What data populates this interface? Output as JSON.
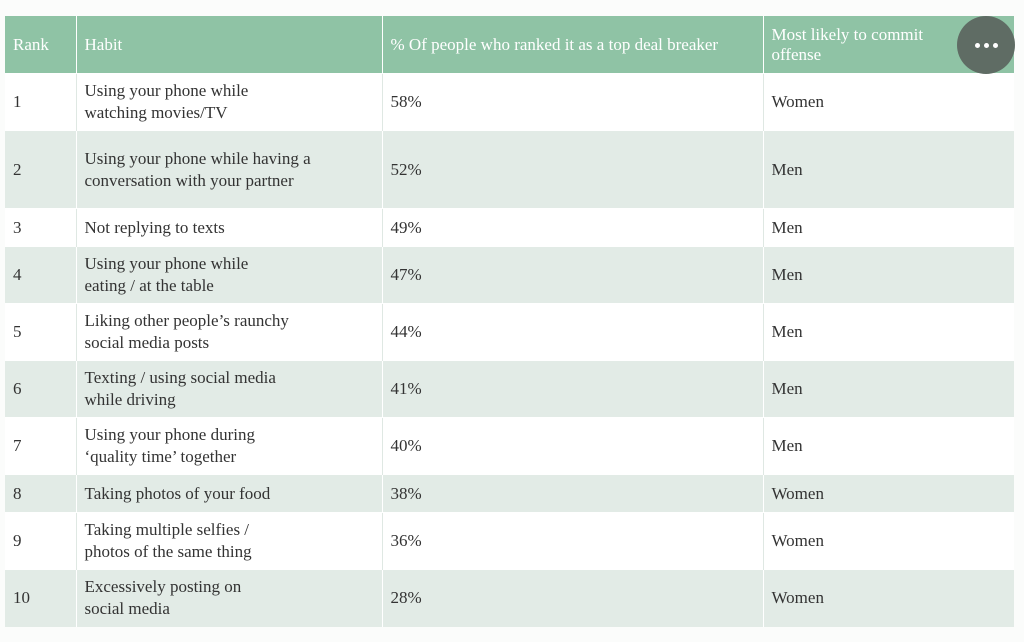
{
  "header": {
    "rank": "Rank",
    "habit": "Habit",
    "percent": "% Of people who ranked it as a top deal breaker",
    "offender": "Most likely to commit offense"
  },
  "rows": [
    {
      "rank": "1",
      "habit": "Using your phone while watching movies/TV",
      "percent": "58%",
      "offender": "Women"
    },
    {
      "rank": "2",
      "habit": "Using your phone while having a conversation with your partner",
      "percent": "52%",
      "offender": "Men"
    },
    {
      "rank": "3",
      "habit": "Not replying to texts",
      "percent": "49%",
      "offender": "Men"
    },
    {
      "rank": "4",
      "habit": "Using your phone while eating / at the table",
      "percent": "47%",
      "offender": "Men"
    },
    {
      "rank": "5",
      "habit": "Liking other people’s raunchy social media posts",
      "percent": "44%",
      "offender": "Men"
    },
    {
      "rank": "6",
      "habit": "Texting / using social media while driving",
      "percent": "41%",
      "offender": "Men"
    },
    {
      "rank": "7",
      "habit": "Using your phone during ‘quality time’ together",
      "percent": "40%",
      "offender": "Men"
    },
    {
      "rank": "8",
      "habit": "Taking photos of your food",
      "percent": "38%",
      "offender": "Women"
    },
    {
      "rank": "9",
      "habit": "Taking multiple selfies / photos of the same thing",
      "percent": "36%",
      "offender": "Women"
    },
    {
      "rank": "10",
      "habit": "Excessively posting on social media",
      "percent": "28%",
      "offender": "Women"
    }
  ],
  "more_button": {
    "icon": "more-horizontal-icon"
  }
}
